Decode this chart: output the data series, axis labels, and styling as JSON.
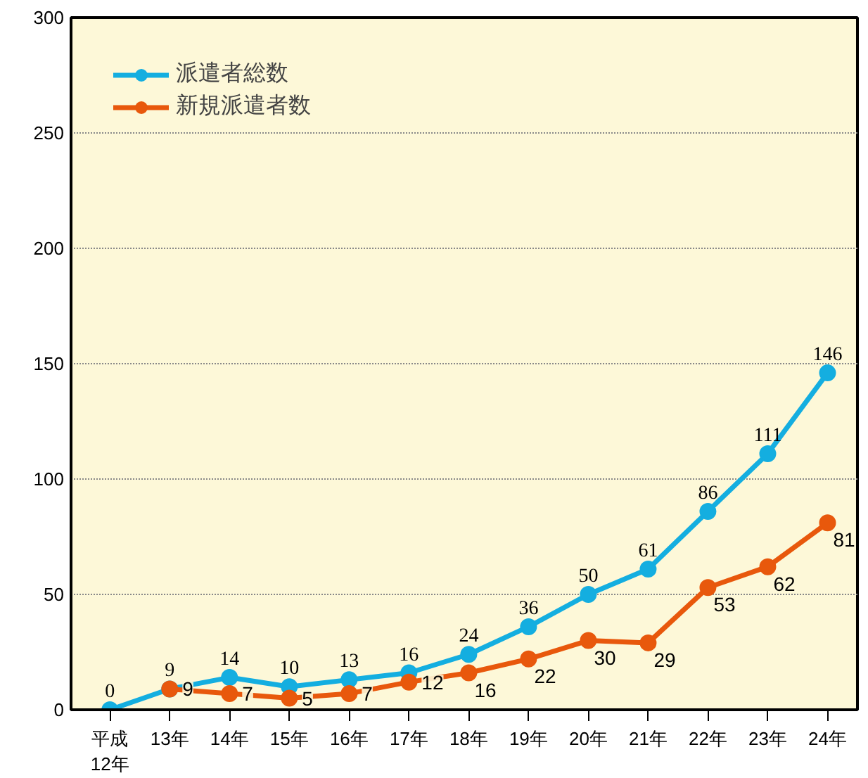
{
  "chart_data": {
    "type": "line",
    "categories": [
      "平成12年",
      "13年",
      "14年",
      "15年",
      "16年",
      "17年",
      "18年",
      "19年",
      "20年",
      "21年",
      "22年",
      "23年",
      "24年"
    ],
    "series": [
      {
        "name": "派遣者総数",
        "color": "#14aee0",
        "values": [
          0,
          9,
          14,
          10,
          13,
          16,
          24,
          36,
          50,
          61,
          86,
          111,
          146
        ]
      },
      {
        "name": "新規派遣者数",
        "color": "#e8580c",
        "values": [
          null,
          9,
          7,
          5,
          7,
          12,
          16,
          22,
          30,
          29,
          53,
          62,
          81
        ]
      }
    ],
    "ylim": [
      0,
      300
    ],
    "yticks": [
      0,
      50,
      100,
      150,
      200,
      250,
      300
    ],
    "grid": "y",
    "legend": "top left",
    "marker": "circle",
    "line_style": "solid",
    "data_labels": true
  }
}
